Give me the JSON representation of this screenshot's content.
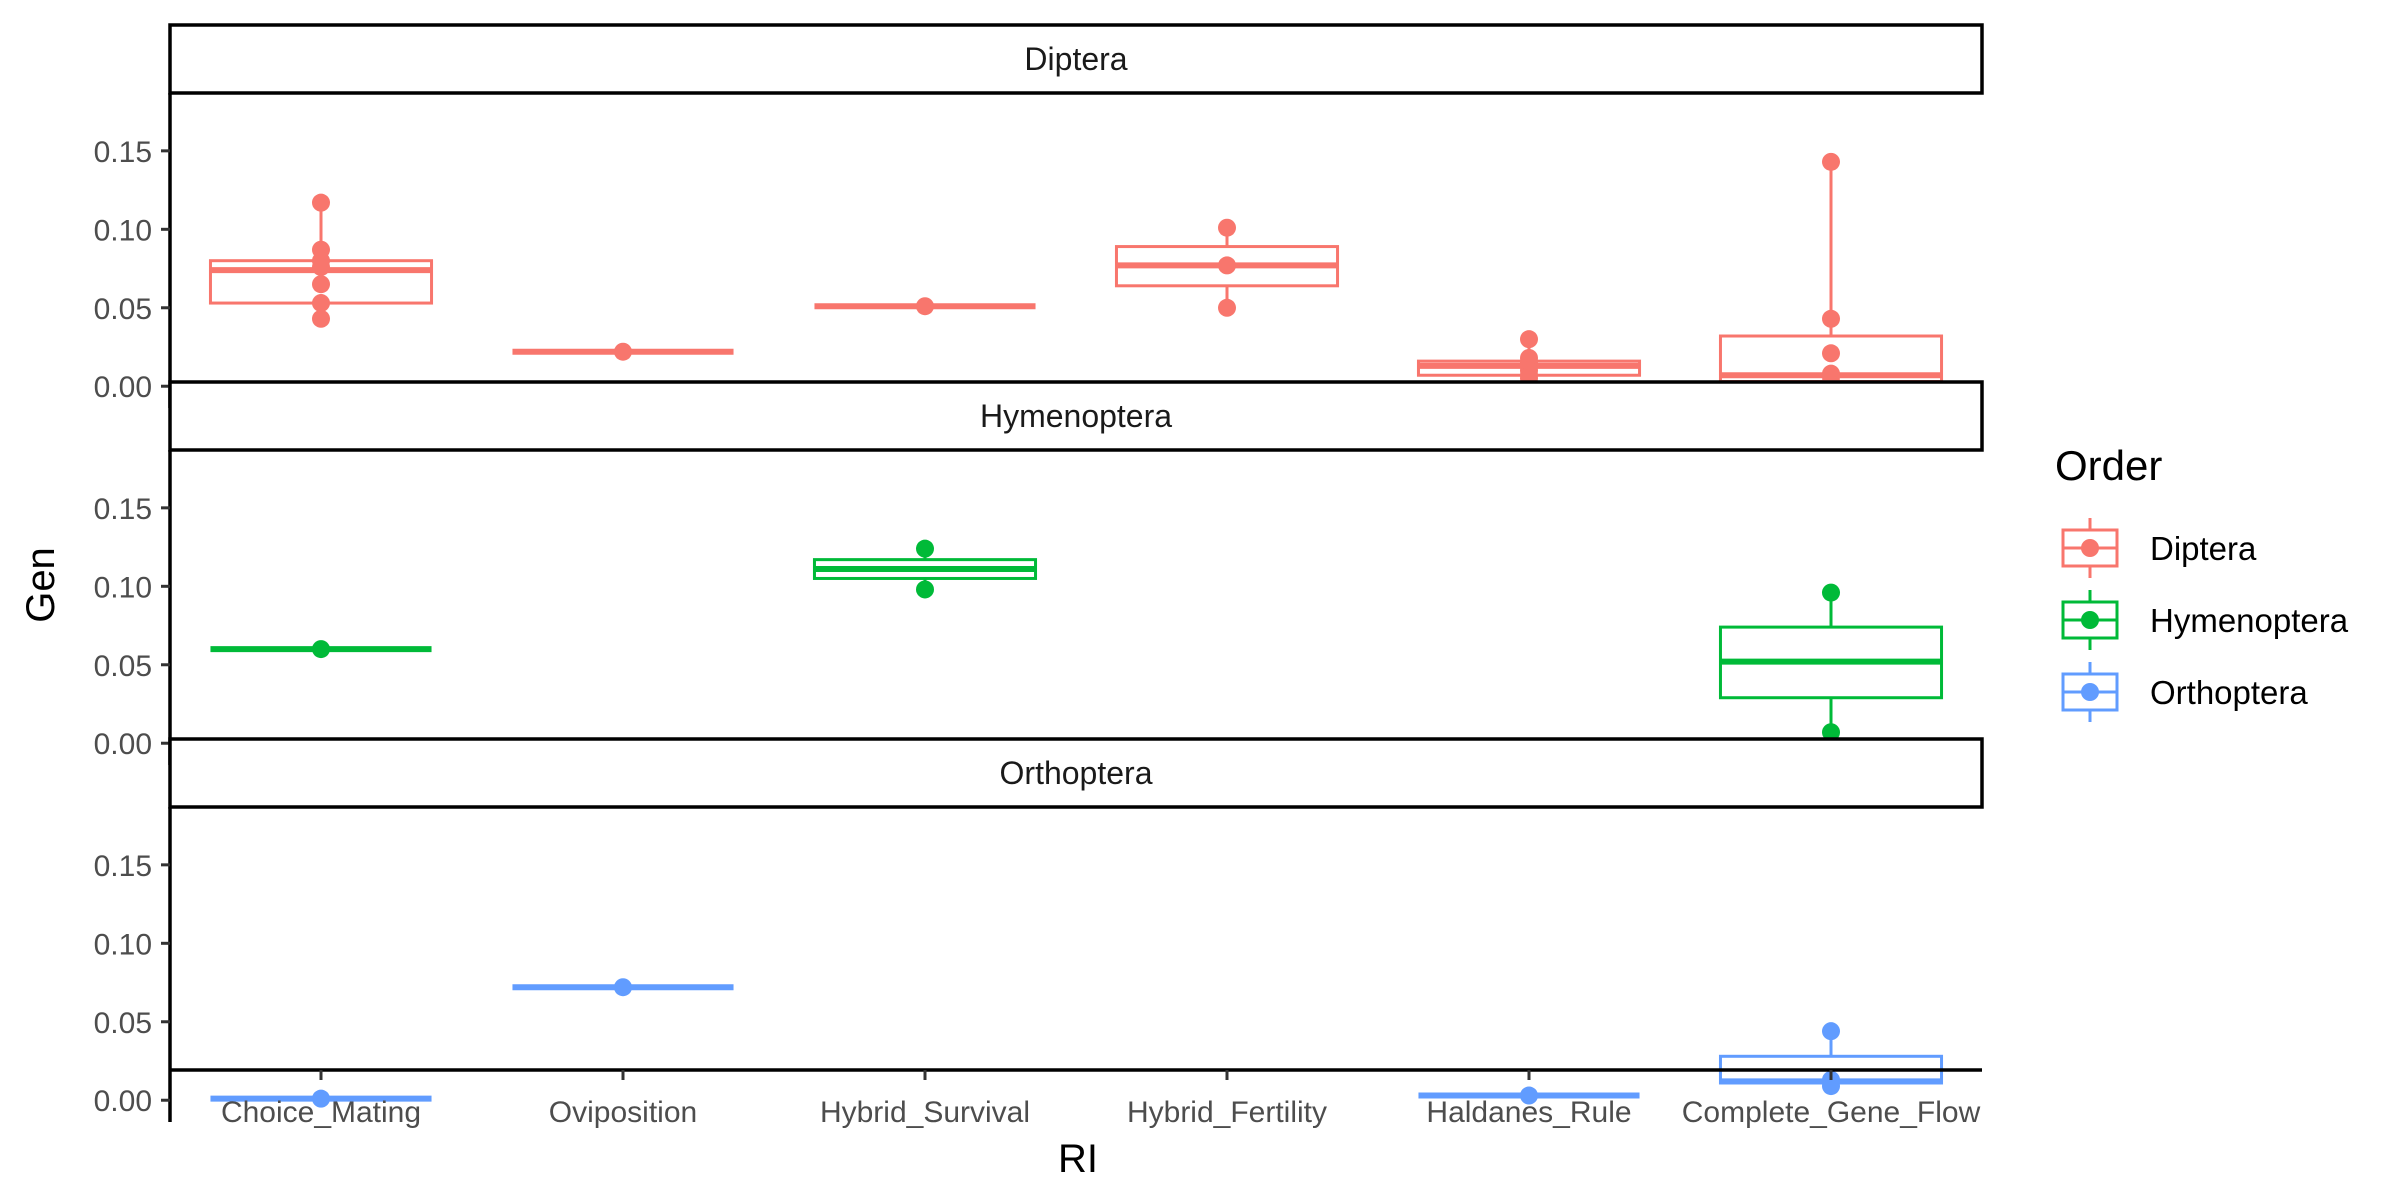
{
  "chart_data": {
    "type": "box",
    "xlabel": "RI",
    "ylabel": "Gen",
    "ylim": [
      0,
      0.15
    ],
    "yticks": [
      "0.00",
      "0.05",
      "0.10",
      "0.15"
    ],
    "categories": [
      "Choice_Mating",
      "Oviposition",
      "Hybrid_Survival",
      "Hybrid_Fertility",
      "Haldanes_Rule",
      "Complete_Gene_Flow"
    ],
    "legend": {
      "title": "Order",
      "position": "right"
    },
    "grid": false,
    "panels": [
      {
        "name": "Diptera",
        "color": "#F8766D",
        "boxes": [
          {
            "category": "Choice_Mating",
            "q1": 0.053,
            "median": 0.074,
            "q3": 0.08,
            "points": [
              0.117,
              0.087,
              0.08,
              0.076,
              0.065,
              0.053,
              0.043
            ]
          },
          {
            "category": "Oviposition",
            "q1": 0.022,
            "median": 0.022,
            "q3": 0.022,
            "points": [
              0.022
            ]
          },
          {
            "category": "Hybrid_Survival",
            "q1": 0.051,
            "median": 0.051,
            "q3": 0.051,
            "points": [
              0.051
            ]
          },
          {
            "category": "Hybrid_Fertility",
            "q1": 0.064,
            "median": 0.077,
            "q3": 0.089,
            "points": [
              0.101,
              0.077,
              0.05
            ]
          },
          {
            "category": "Haldanes_Rule",
            "q1": 0.007,
            "median": 0.013,
            "q3": 0.016,
            "points": [
              0.03,
              0.018,
              0.015,
              0.013,
              0.01,
              0.007,
              0.005
            ]
          },
          {
            "category": "Complete_Gene_Flow",
            "q1": 0.003,
            "median": 0.007,
            "q3": 0.032,
            "points": [
              0.143,
              0.043,
              0.021,
              0.008,
              0.006,
              0.003,
              0.001
            ]
          }
        ]
      },
      {
        "name": "Hymenoptera",
        "color": "#00BA38",
        "boxes": [
          {
            "category": "Choice_Mating",
            "q1": 0.06,
            "median": 0.06,
            "q3": 0.06,
            "points": [
              0.06
            ]
          },
          {
            "category": "Hybrid_Survival",
            "q1": 0.105,
            "median": 0.111,
            "q3": 0.117,
            "points": [
              0.124,
              0.098
            ]
          },
          {
            "category": "Complete_Gene_Flow",
            "q1": 0.029,
            "median": 0.052,
            "q3": 0.074,
            "points": [
              0.096,
              0.007
            ]
          }
        ]
      },
      {
        "name": "Orthoptera",
        "color": "#619CFF",
        "boxes": [
          {
            "category": "Choice_Mating",
            "q1": 0.001,
            "median": 0.001,
            "q3": 0.001,
            "points": [
              0.001
            ]
          },
          {
            "category": "Oviposition",
            "q1": 0.072,
            "median": 0.072,
            "q3": 0.072,
            "points": [
              0.072
            ]
          },
          {
            "category": "Haldanes_Rule",
            "q1": 0.003,
            "median": 0.003,
            "q3": 0.003,
            "points": [
              0.003
            ]
          },
          {
            "category": "Complete_Gene_Flow",
            "q1": 0.011,
            "median": 0.012,
            "q3": 0.028,
            "points": [
              0.044,
              0.013,
              0.009
            ]
          }
        ]
      }
    ]
  }
}
